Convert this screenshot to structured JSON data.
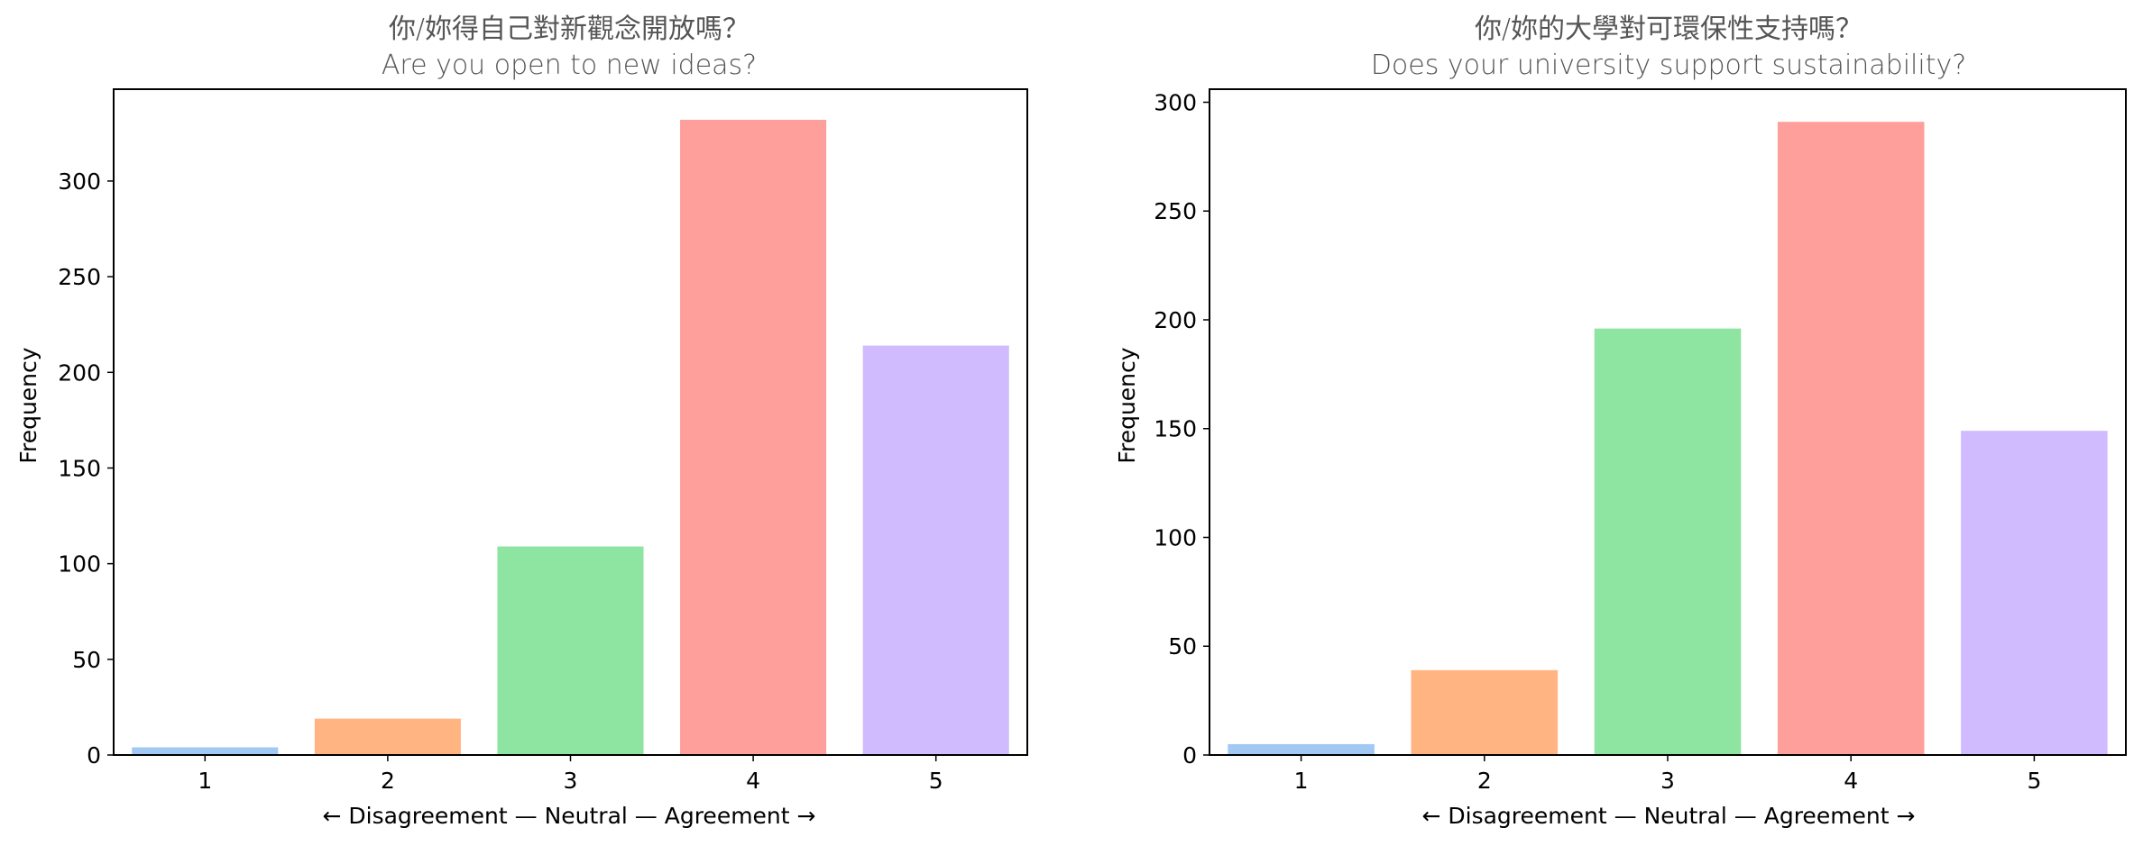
{
  "chart_data": [
    {
      "type": "bar",
      "title_zh": "你/妳得自己對新觀念開放嗎？",
      "title_en": "Are you open to new ideas?",
      "xlabel": "← Disagreement — Neutral — Agreement →",
      "ylabel": "Frequency",
      "categories": [
        "1",
        "2",
        "3",
        "4",
        "5"
      ],
      "values": [
        4,
        19,
        109,
        332,
        214
      ],
      "colors": [
        "#a1c9f4",
        "#ffb482",
        "#8de5a1",
        "#ff9f9b",
        "#d0bbff"
      ],
      "ylim": [
        0,
        348
      ],
      "yticks": [
        0,
        50,
        100,
        150,
        200,
        250,
        300
      ],
      "grid": false
    },
    {
      "type": "bar",
      "title_zh": "你/妳的大學對可環保性支持嗎？",
      "title_en": "Does your university support sustainability?",
      "xlabel": "← Disagreement — Neutral — Agreement →",
      "ylabel": "Frequency",
      "categories": [
        "1",
        "2",
        "3",
        "4",
        "5"
      ],
      "values": [
        5,
        39,
        196,
        291,
        149
      ],
      "colors": [
        "#a1c9f4",
        "#ffb482",
        "#8de5a1",
        "#ff9f9b",
        "#d0bbff"
      ],
      "ylim": [
        0,
        306
      ],
      "yticks": [
        0,
        50,
        100,
        150,
        200,
        250,
        300
      ],
      "grid": false
    }
  ]
}
